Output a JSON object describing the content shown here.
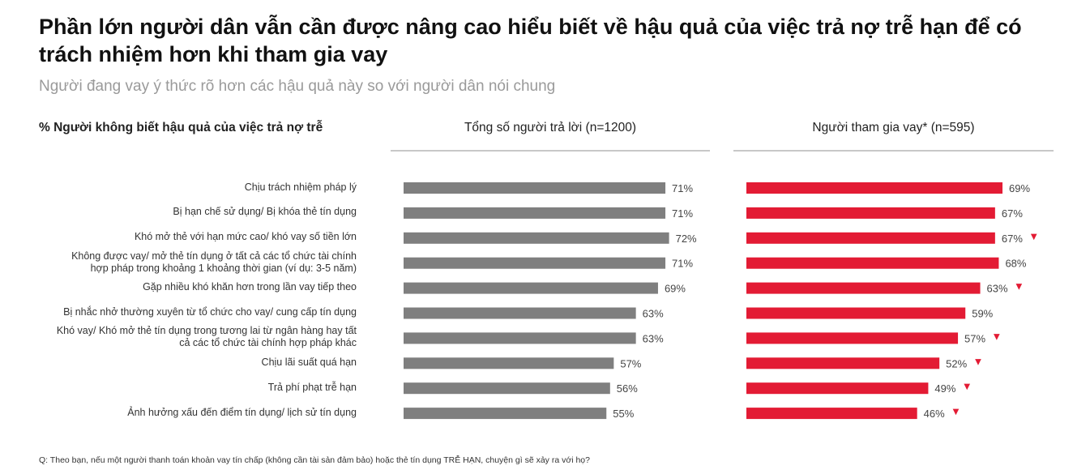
{
  "header": {
    "title": "Phần lớn người dân vẫn cần được nâng cao hiểu biết về hậu quả của việc trả nợ trễ hạn để có trách nhiệm hơn khi tham gia vay",
    "subtitle": "Người đang vay ý thức rõ hơn các hậu quả này so với người dân nói chung"
  },
  "columns": {
    "category_header": "% Người không biết hậu quả của việc trả nợ trễ",
    "series1_header": "Tổng số người trả lời (n=1200)",
    "series2_header": "Người tham gia vay* (n=595)"
  },
  "colors": {
    "series1": "#7f7f7f",
    "series2": "#e31b34",
    "down_marker": "#e31b34"
  },
  "chart_data": {
    "type": "bar",
    "orientation": "horizontal",
    "categories": [
      "Chịu trách nhiệm pháp lý",
      "Bị hạn chế sử dụng/ Bị khóa thẻ tín dụng",
      "Khó mở thẻ với hạn mức cao/ khó vay số tiền lớn",
      "Không được vay/ mở thẻ tín dụng ở tất cả các tổ chức tài chính hợp pháp trong khoảng 1 khoảng thời gian (ví dụ: 3-5 năm)",
      "Gặp nhiều khó khăn hơn trong lần vay tiếp theo",
      "Bị nhắc nhở thường xuyên từ tổ chức cho vay/ cung cấp tín dụng",
      "Khó vay/ Khó mở thẻ tín dụng trong tương lai từ ngân hàng hay tất cả các tổ chức tài chính hợp pháp khác",
      "Chịu lãi suất quá hạn",
      "Trả phí phạt trễ hạn",
      "Ảnh hưởng xấu đến điểm tín dụng/ lịch sử tín dụng"
    ],
    "category_lines": [
      [
        "Chịu trách nhiệm pháp lý"
      ],
      [
        "Bị hạn chế sử dụng/ Bị khóa thẻ tín dụng"
      ],
      [
        "Khó mở thẻ với hạn mức cao/ khó vay số tiền lớn"
      ],
      [
        "Không được vay/ mở thẻ tín dụng ở tất cả các tổ chức tài chính",
        "hợp pháp trong khoảng 1 khoảng thời gian (ví dụ: 3-5 năm)"
      ],
      [
        "Gặp nhiều khó khăn hơn trong lần vay tiếp theo"
      ],
      [
        "Bị nhắc nhở thường xuyên từ tổ chức cho vay/ cung cấp tín dụng"
      ],
      [
        "Khó vay/ Khó mở thẻ tín dụng trong tương lai từ ngân hàng hay tất",
        "cả các tổ chức tài chính hợp pháp khác"
      ],
      [
        "Chịu lãi suất quá hạn"
      ],
      [
        "Trả phí phạt trễ hạn"
      ],
      [
        "Ảnh hưởng xấu đến điểm tín dụng/ lịch sử tín dụng"
      ]
    ],
    "series": [
      {
        "name": "Tổng số người trả lời (n=1200)",
        "values": [
          71,
          71,
          72,
          71,
          69,
          63,
          63,
          57,
          56,
          55
        ]
      },
      {
        "name": "Người tham gia vay* (n=595)",
        "values": [
          69,
          67,
          67,
          68,
          63,
          59,
          57,
          52,
          49,
          46
        ],
        "down_markers": [
          false,
          false,
          true,
          false,
          true,
          false,
          true,
          true,
          true,
          true
        ]
      }
    ],
    "value_suffix": "%",
    "down_marker_symbol": "▼",
    "xlim": [
      0,
      100
    ]
  },
  "footnote": "Q: Theo bạn, nếu một người thanh toán khoản vay tín chấp (không cần tài sản đảm bảo) hoặc thẻ tín dụng TRỄ HẠN, chuyện gì sẽ xảy ra với họ?"
}
